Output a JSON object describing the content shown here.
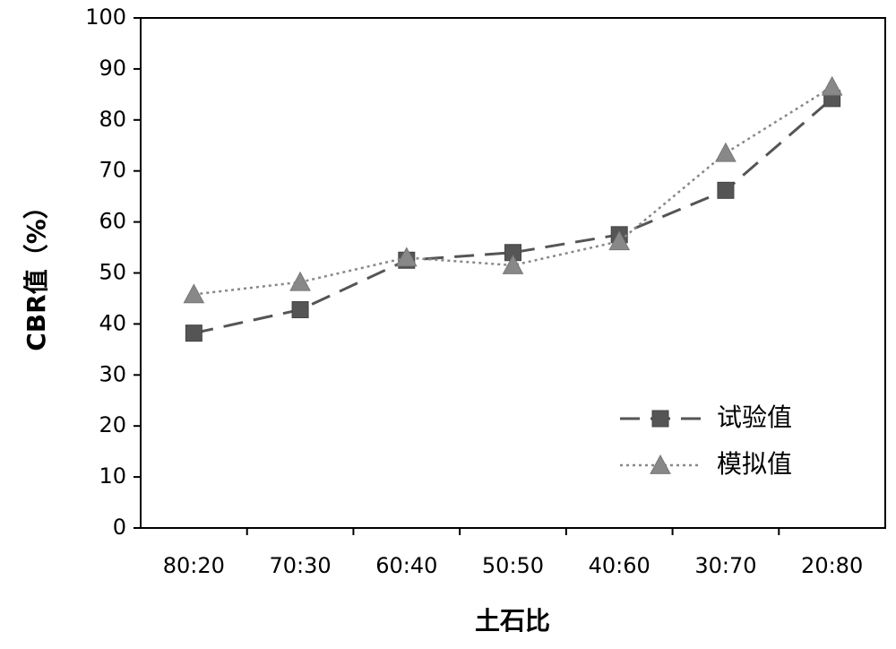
{
  "chart_data": {
    "type": "line",
    "title": "",
    "xlabel": "土石比",
    "ylabel": "CBR值（%）",
    "ylim": [
      0,
      100
    ],
    "yticks": [
      0,
      10,
      20,
      30,
      40,
      50,
      60,
      70,
      80,
      90,
      100
    ],
    "categories": [
      "80:20",
      "70:30",
      "60:40",
      "50:50",
      "40:60",
      "30:70",
      "20:80"
    ],
    "grid": false,
    "legend_position": "bottom-right",
    "series": [
      {
        "name": "试验值",
        "values": [
          38.2,
          42.8,
          52.5,
          54.0,
          57.5,
          66.2,
          84.2
        ],
        "color": "#555555",
        "line_style": "dashed",
        "marker": "square"
      },
      {
        "name": "模拟值",
        "values": [
          45.8,
          48.2,
          53.0,
          51.5,
          56.2,
          73.5,
          86.5
        ],
        "color": "#888888",
        "line_style": "dotted",
        "marker": "triangle"
      }
    ]
  }
}
